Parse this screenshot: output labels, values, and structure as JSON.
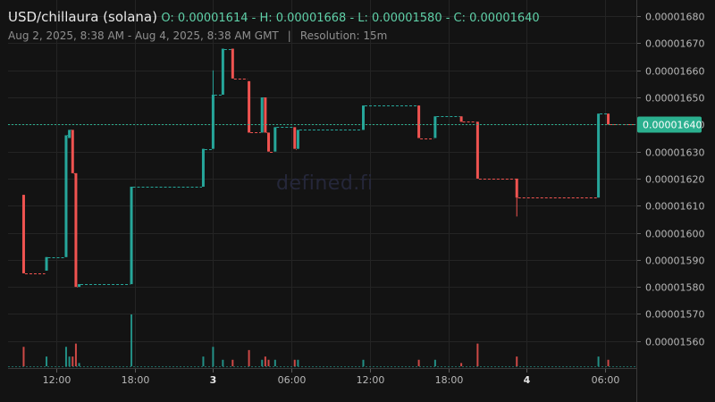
{
  "header": {
    "pair": "USD/chillaura (solana)",
    "ohlc": "O: 0.00001614 - H: 0.00001668 - L: 0.00001580 - C: 0.00001640",
    "range": "Aug 2, 2025, 8:38 AM - Aug 4, 2025, 8:38 AM GMT",
    "separator": "|",
    "resolution": "Resolution: 15m"
  },
  "watermark": "defined.fi",
  "colors": {
    "background": "#131313",
    "grid": "#242424",
    "up": "#26a69a",
    "down": "#ef5350",
    "axis_text": "#b8b8b8",
    "last_price_badge": "#2bb08f"
  },
  "chart_data": {
    "type": "candlestick",
    "y_unit": "USD",
    "ylim": [
      1.55e-05,
      1.686e-05
    ],
    "y_ticks": [
      1.68e-05,
      1.67e-05,
      1.66e-05,
      1.65e-05,
      1.64e-05,
      1.63e-05,
      1.62e-05,
      1.61e-05,
      1.6e-05,
      1.59e-05,
      1.58e-05,
      1.57e-05,
      1.56e-05
    ],
    "y_tick_labels": [
      "0.00001680",
      "0.00001670",
      "0.00001660",
      "0.00001650",
      "0.00001640",
      "0.00001630",
      "0.00001620",
      "0.00001610",
      "0.00001600",
      "0.00001590",
      "0.00001580",
      "0.00001570",
      "0.00001560"
    ],
    "x_ticks": [
      "12:00",
      "18:00",
      "3",
      "06:00",
      "12:00",
      "18:00",
      "4",
      "06:00"
    ],
    "x_tick_times": [
      "2025-08-02T12:00",
      "2025-08-02T18:00",
      "2025-08-03T00:00",
      "2025-08-03T06:00",
      "2025-08-03T12:00",
      "2025-08-03T18:00",
      "2025-08-04T00:00",
      "2025-08-04T06:00"
    ],
    "last_price": 1.64e-05,
    "last_price_label": "0.00001640",
    "grid": true,
    "candles": [
      {
        "t": "2025-08-02T09:30",
        "o": 1.614e-05,
        "h": 1.614e-05,
        "l": 1.585e-05,
        "c": 1.585e-05,
        "v": 6
      },
      {
        "t": "2025-08-02T11:15",
        "o": 1.586e-05,
        "h": 1.591e-05,
        "l": 1.586e-05,
        "c": 1.591e-05,
        "v": 3
      },
      {
        "t": "2025-08-02T12:45",
        "o": 1.591e-05,
        "h": 1.636e-05,
        "l": 1.591e-05,
        "c": 1.636e-05,
        "v": 6
      },
      {
        "t": "2025-08-02T13:00",
        "o": 1.635e-05,
        "h": 1.638e-05,
        "l": 1.635e-05,
        "c": 1.638e-05,
        "v": 3
      },
      {
        "t": "2025-08-02T13:15",
        "o": 1.638e-05,
        "h": 1.638e-05,
        "l": 1.622e-05,
        "c": 1.622e-05,
        "v": 3
      },
      {
        "t": "2025-08-02T13:30",
        "o": 1.622e-05,
        "h": 1.622e-05,
        "l": 1.58e-05,
        "c": 1.58e-05,
        "v": 7
      },
      {
        "t": "2025-08-02T13:45",
        "o": 1.58e-05,
        "h": 1.581e-05,
        "l": 1.58e-05,
        "c": 1.581e-05,
        "v": 1
      },
      {
        "t": "2025-08-02T17:45",
        "o": 1.581e-05,
        "h": 1.617e-05,
        "l": 1.581e-05,
        "c": 1.617e-05,
        "v": 16
      },
      {
        "t": "2025-08-02T23:15",
        "o": 1.617e-05,
        "h": 1.631e-05,
        "l": 1.617e-05,
        "c": 1.631e-05,
        "v": 3
      },
      {
        "t": "2025-08-03T00:00",
        "o": 1.631e-05,
        "h": 1.66e-05,
        "l": 1.631e-05,
        "c": 1.651e-05,
        "v": 6
      },
      {
        "t": "2025-08-03T00:45",
        "o": 1.651e-05,
        "h": 1.668e-05,
        "l": 1.651e-05,
        "c": 1.668e-05,
        "v": 2
      },
      {
        "t": "2025-08-03T01:30",
        "o": 1.668e-05,
        "h": 1.668e-05,
        "l": 1.657e-05,
        "c": 1.657e-05,
        "v": 2
      },
      {
        "t": "2025-08-03T02:45",
        "o": 1.656e-05,
        "h": 1.656e-05,
        "l": 1.637e-05,
        "c": 1.637e-05,
        "v": 5
      },
      {
        "t": "2025-08-03T03:45",
        "o": 1.637e-05,
        "h": 1.65e-05,
        "l": 1.637e-05,
        "c": 1.65e-05,
        "v": 2
      },
      {
        "t": "2025-08-03T04:00",
        "o": 1.65e-05,
        "h": 1.65e-05,
        "l": 1.637e-05,
        "c": 1.637e-05,
        "v": 3
      },
      {
        "t": "2025-08-03T04:15",
        "o": 1.637e-05,
        "h": 1.637e-05,
        "l": 1.63e-05,
        "c": 1.63e-05,
        "v": 2
      },
      {
        "t": "2025-08-03T04:45",
        "o": 1.63e-05,
        "h": 1.639e-05,
        "l": 1.63e-05,
        "c": 1.639e-05,
        "v": 2
      },
      {
        "t": "2025-08-03T06:15",
        "o": 1.639e-05,
        "h": 1.639e-05,
        "l": 1.631e-05,
        "c": 1.631e-05,
        "v": 2
      },
      {
        "t": "2025-08-03T06:30",
        "o": 1.631e-05,
        "h": 1.638e-05,
        "l": 1.631e-05,
        "c": 1.638e-05,
        "v": 2
      },
      {
        "t": "2025-08-03T11:30",
        "o": 1.638e-05,
        "h": 1.647e-05,
        "l": 1.638e-05,
        "c": 1.647e-05,
        "v": 2
      },
      {
        "t": "2025-08-03T15:45",
        "o": 1.647e-05,
        "h": 1.647e-05,
        "l": 1.635e-05,
        "c": 1.635e-05,
        "v": 2
      },
      {
        "t": "2025-08-03T17:00",
        "o": 1.635e-05,
        "h": 1.643e-05,
        "l": 1.635e-05,
        "c": 1.643e-05,
        "v": 2
      },
      {
        "t": "2025-08-03T19:00",
        "o": 1.643e-05,
        "h": 1.643e-05,
        "l": 1.641e-05,
        "c": 1.641e-05,
        "v": 1
      },
      {
        "t": "2025-08-03T20:15",
        "o": 1.641e-05,
        "h": 1.641e-05,
        "l": 1.62e-05,
        "c": 1.62e-05,
        "v": 7
      },
      {
        "t": "2025-08-03T23:15",
        "o": 1.62e-05,
        "h": 1.62e-05,
        "l": 1.606e-05,
        "c": 1.613e-05,
        "v": 3
      },
      {
        "t": "2025-08-04T05:30",
        "o": 1.613e-05,
        "h": 1.644e-05,
        "l": 1.613e-05,
        "c": 1.644e-05,
        "v": 3
      },
      {
        "t": "2025-08-04T06:15",
        "o": 1.644e-05,
        "h": 1.644e-05,
        "l": 1.64e-05,
        "c": 1.64e-05,
        "v": 2
      }
    ]
  }
}
